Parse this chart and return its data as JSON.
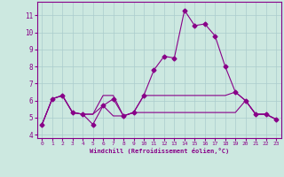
{
  "xlabel": "Windchill (Refroidissement éolien,°C)",
  "x": [
    0,
    1,
    2,
    3,
    4,
    5,
    6,
    7,
    8,
    9,
    10,
    11,
    12,
    13,
    14,
    15,
    16,
    17,
    18,
    19,
    20,
    21,
    22,
    23
  ],
  "line1": [
    4.6,
    6.1,
    6.3,
    5.3,
    5.2,
    4.6,
    5.7,
    6.1,
    5.1,
    5.3,
    6.3,
    7.8,
    8.6,
    8.5,
    11.3,
    10.4,
    10.5,
    9.8,
    8.0,
    6.5,
    6.0,
    5.2,
    5.2,
    4.9
  ],
  "line2": [
    4.6,
    6.1,
    6.3,
    5.3,
    5.2,
    5.2,
    6.3,
    6.3,
    5.1,
    5.3,
    6.3,
    6.3,
    6.3,
    6.3,
    6.3,
    6.3,
    6.3,
    6.3,
    6.3,
    6.5,
    6.0,
    5.2,
    5.2,
    4.9
  ],
  "line3": [
    4.6,
    6.1,
    6.3,
    5.3,
    5.2,
    5.2,
    5.7,
    5.1,
    5.1,
    5.3,
    5.3,
    5.3,
    5.3,
    5.3,
    5.3,
    5.3,
    5.3,
    5.3,
    5.3,
    5.3,
    6.0,
    5.2,
    5.2,
    4.9
  ],
  "line_color": "#880088",
  "bg_color": "#cce8e0",
  "grid_color": "#aacccc",
  "ylim": [
    3.8,
    11.8
  ],
  "yticks": [
    4,
    5,
    6,
    7,
    8,
    9,
    10,
    11
  ],
  "xlim": [
    -0.5,
    23.5
  ],
  "markersize": 2.5,
  "linewidth": 0.8
}
